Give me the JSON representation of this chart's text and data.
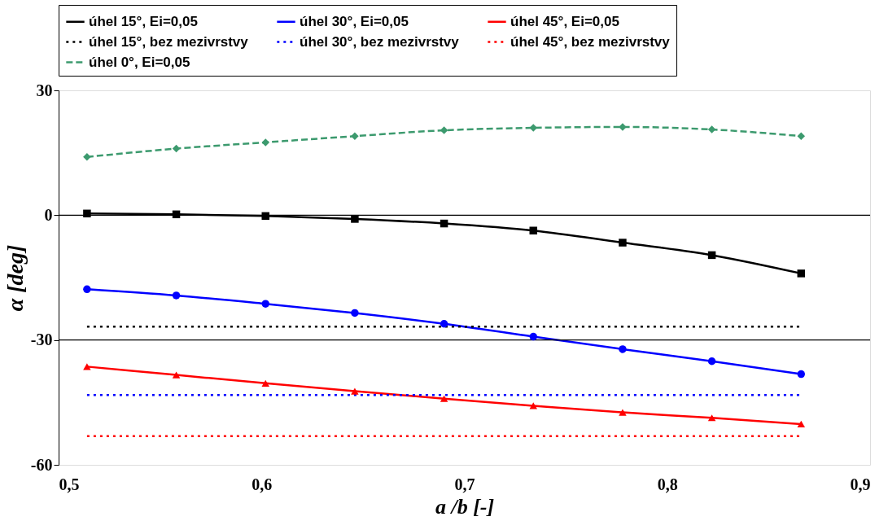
{
  "chart_data": {
    "type": "line",
    "xlabel": "a /b  [-]",
    "ylabel": "α  [deg]",
    "xlim": [
      0.5,
      0.9
    ],
    "ylim": [
      -60,
      30
    ],
    "xticks": [
      {
        "value": 0.5,
        "label": "0,5"
      },
      {
        "value": 0.6,
        "label": "0,6"
      },
      {
        "value": 0.7,
        "label": "0,7"
      },
      {
        "value": 0.8,
        "label": "0,8"
      },
      {
        "value": 0.9,
        "label": "0,9"
      }
    ],
    "yticks": [
      -60,
      -30,
      0,
      30
    ],
    "grid": false,
    "legend": "top",
    "x": [
      0.514,
      0.558,
      0.602,
      0.646,
      0.69,
      0.734,
      0.778,
      0.822,
      0.866
    ],
    "ref_lines": [
      {
        "axis": "y",
        "value": 0,
        "color": "#000000"
      },
      {
        "axis": "y",
        "value": -30,
        "color": "#000000"
      }
    ],
    "series": [
      {
        "name": "úhel 15°, Ei=0,05",
        "color": "#000000",
        "marker": "square",
        "line_style": "solid",
        "values": [
          0.4,
          0.2,
          -0.2,
          -0.9,
          -2,
          -3.7,
          -6.6,
          -9.6,
          -14
        ]
      },
      {
        "name": "úhel 30°, Ei=0,05",
        "color": "#0000ff",
        "marker": "circle",
        "line_style": "solid",
        "values": [
          -17.8,
          -19.3,
          -21.3,
          -23.5,
          -26.1,
          -29.2,
          -32.2,
          -35.1,
          -38.2
        ]
      },
      {
        "name": "úhel 45°, Ei=0,05",
        "color": "#ff0000",
        "marker": "triangle",
        "line_style": "solid",
        "values": [
          -36.4,
          -38.4,
          -40.4,
          -42.3,
          -44.1,
          -45.8,
          -47.4,
          -48.7,
          -50.2
        ]
      },
      {
        "name": "úhel 15°, bez mezivrstvy",
        "color": "#000000",
        "marker": "none",
        "line_style": "dotted",
        "values": [
          -26.8,
          -26.8,
          -26.8,
          -26.8,
          -26.8,
          -26.8,
          -26.8,
          -26.8,
          -26.8
        ]
      },
      {
        "name": "úhel 30°, bez mezivrstvy",
        "color": "#0000ff",
        "marker": "none",
        "line_style": "dotted",
        "values": [
          -43.2,
          -43.2,
          -43.2,
          -43.2,
          -43.2,
          -43.2,
          -43.2,
          -43.2,
          -43.2
        ]
      },
      {
        "name": "úhel 45°, bez mezivrstvy",
        "color": "#ff0000",
        "marker": "none",
        "line_style": "dotted",
        "values": [
          -53.1,
          -53.1,
          -53.1,
          -53.1,
          -53.1,
          -53.1,
          -53.1,
          -53.1,
          -53.1
        ]
      },
      {
        "name": "úhel 0°, Ei=0,05",
        "color": "#3c9a6e",
        "marker": "diamond",
        "line_style": "dashed",
        "values": [
          14,
          16,
          17.5,
          19,
          20.4,
          21,
          21.2,
          20.6,
          19
        ]
      }
    ]
  }
}
